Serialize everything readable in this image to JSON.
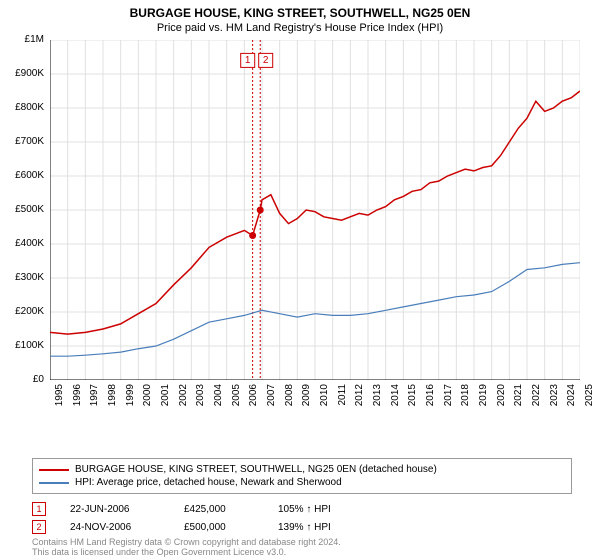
{
  "title": "BURGAGE HOUSE, KING STREET, SOUTHWELL, NG25 0EN",
  "subtitle": "Price paid vs. HM Land Registry's House Price Index (HPI)",
  "chart": {
    "type": "line",
    "background_color": "#ffffff",
    "grid_color": "#e0e0e0",
    "axis_color": "#000000",
    "ylim": [
      0,
      1000000
    ],
    "ytick_step": 100000,
    "ytick_labels": [
      "£0",
      "£100K",
      "£200K",
      "£300K",
      "£400K",
      "£500K",
      "£600K",
      "£700K",
      "£800K",
      "£900K",
      "£1M"
    ],
    "xlim": [
      1995,
      2025
    ],
    "xticks": [
      1995,
      1996,
      1997,
      1998,
      1999,
      2000,
      2001,
      2002,
      2003,
      2004,
      2005,
      2006,
      2007,
      2008,
      2009,
      2010,
      2011,
      2012,
      2013,
      2014,
      2015,
      2016,
      2017,
      2018,
      2019,
      2020,
      2021,
      2022,
      2023,
      2024,
      2025
    ],
    "series": [
      {
        "name": "burgage",
        "label": "BURGAGE HOUSE, KING STREET, SOUTHWELL, NG25 0EN (detached house)",
        "color": "#cc0000",
        "line_width": 1.5,
        "data": [
          [
            1995,
            140000
          ],
          [
            1996,
            135000
          ],
          [
            1997,
            140000
          ],
          [
            1998,
            150000
          ],
          [
            1999,
            165000
          ],
          [
            2000,
            195000
          ],
          [
            2001,
            225000
          ],
          [
            2002,
            280000
          ],
          [
            2003,
            330000
          ],
          [
            2004,
            390000
          ],
          [
            2005,
            420000
          ],
          [
            2006,
            440000
          ],
          [
            2006.47,
            425000
          ],
          [
            2006.9,
            500000
          ],
          [
            2007,
            530000
          ],
          [
            2007.5,
            545000
          ],
          [
            2008,
            490000
          ],
          [
            2008.5,
            460000
          ],
          [
            2009,
            475000
          ],
          [
            2009.5,
            500000
          ],
          [
            2010,
            495000
          ],
          [
            2010.5,
            480000
          ],
          [
            2011,
            475000
          ],
          [
            2011.5,
            470000
          ],
          [
            2012,
            480000
          ],
          [
            2012.5,
            490000
          ],
          [
            2013,
            485000
          ],
          [
            2013.5,
            500000
          ],
          [
            2014,
            510000
          ],
          [
            2014.5,
            530000
          ],
          [
            2015,
            540000
          ],
          [
            2015.5,
            555000
          ],
          [
            2016,
            560000
          ],
          [
            2016.5,
            580000
          ],
          [
            2017,
            585000
          ],
          [
            2017.5,
            600000
          ],
          [
            2018,
            610000
          ],
          [
            2018.5,
            620000
          ],
          [
            2019,
            615000
          ],
          [
            2019.5,
            625000
          ],
          [
            2020,
            630000
          ],
          [
            2020.5,
            660000
          ],
          [
            2021,
            700000
          ],
          [
            2021.5,
            740000
          ],
          [
            2022,
            770000
          ],
          [
            2022.5,
            820000
          ],
          [
            2023,
            790000
          ],
          [
            2023.5,
            800000
          ],
          [
            2024,
            820000
          ],
          [
            2024.5,
            830000
          ],
          [
            2025,
            850000
          ]
        ]
      },
      {
        "name": "hpi",
        "label": "HPI: Average price, detached house, Newark and Sherwood",
        "color": "#4a7ebb",
        "line_width": 1.2,
        "data": [
          [
            1995,
            70000
          ],
          [
            1996,
            70000
          ],
          [
            1997,
            73000
          ],
          [
            1998,
            77000
          ],
          [
            1999,
            82000
          ],
          [
            2000,
            92000
          ],
          [
            2001,
            100000
          ],
          [
            2002,
            120000
          ],
          [
            2003,
            145000
          ],
          [
            2004,
            170000
          ],
          [
            2005,
            180000
          ],
          [
            2006,
            190000
          ],
          [
            2007,
            205000
          ],
          [
            2008,
            195000
          ],
          [
            2009,
            185000
          ],
          [
            2010,
            195000
          ],
          [
            2011,
            190000
          ],
          [
            2012,
            190000
          ],
          [
            2013,
            195000
          ],
          [
            2014,
            205000
          ],
          [
            2015,
            215000
          ],
          [
            2016,
            225000
          ],
          [
            2017,
            235000
          ],
          [
            2018,
            245000
          ],
          [
            2019,
            250000
          ],
          [
            2020,
            260000
          ],
          [
            2021,
            290000
          ],
          [
            2022,
            325000
          ],
          [
            2023,
            330000
          ],
          [
            2024,
            340000
          ],
          [
            2025,
            345000
          ]
        ]
      }
    ],
    "sale_markers": [
      {
        "n": "1",
        "year": 2006.47,
        "price": 425000
      },
      {
        "n": "2",
        "year": 2006.9,
        "price": 500000
      }
    ],
    "label_box_pair": {
      "year": 2006.7,
      "top_y": 940000
    }
  },
  "legend": {
    "items": [
      {
        "color": "#cc0000",
        "label": "BURGAGE HOUSE, KING STREET, SOUTHWELL, NG25 0EN (detached house)"
      },
      {
        "color": "#4a7ebb",
        "label": "HPI: Average price, detached house, Newark and Sherwood"
      }
    ]
  },
  "sales": [
    {
      "n": "1",
      "date": "22-JUN-2006",
      "price": "£425,000",
      "hpi": "105% ↑ HPI"
    },
    {
      "n": "2",
      "date": "24-NOV-2006",
      "price": "£500,000",
      "hpi": "139% ↑ HPI"
    }
  ],
  "footer": {
    "line1": "Contains HM Land Registry data © Crown copyright and database right 2024.",
    "line2": "This data is licensed under the Open Government Licence v3.0."
  }
}
